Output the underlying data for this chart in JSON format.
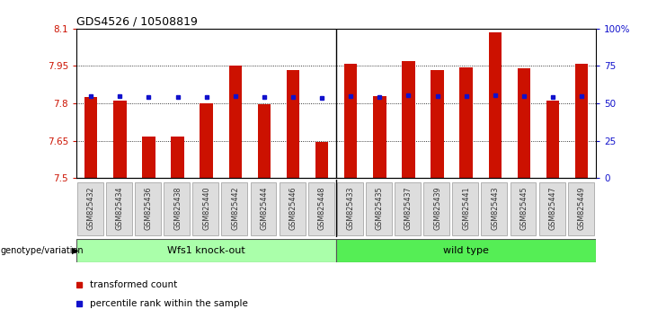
{
  "title": "GDS4526 / 10508819",
  "categories": [
    "GSM825432",
    "GSM825434",
    "GSM825436",
    "GSM825438",
    "GSM825440",
    "GSM825442",
    "GSM825444",
    "GSM825446",
    "GSM825448",
    "GSM825433",
    "GSM825435",
    "GSM825437",
    "GSM825439",
    "GSM825441",
    "GSM825443",
    "GSM825445",
    "GSM825447",
    "GSM825449"
  ],
  "red_values": [
    7.825,
    7.81,
    7.665,
    7.668,
    7.8,
    7.95,
    7.795,
    7.935,
    7.645,
    7.96,
    7.828,
    7.968,
    7.935,
    7.945,
    8.085,
    7.94,
    7.812,
    7.958
  ],
  "blue_values": [
    7.83,
    7.828,
    7.825,
    7.825,
    7.827,
    7.828,
    7.826,
    7.826,
    7.822,
    7.83,
    7.827,
    7.832,
    7.828,
    7.83,
    7.831,
    7.828,
    7.826,
    7.83
  ],
  "ymin": 7.5,
  "ymax": 8.1,
  "yticks_left": [
    7.5,
    7.65,
    7.8,
    7.95,
    8.1
  ],
  "yticks_right_vals": [
    7.5,
    7.65,
    7.8,
    7.95,
    8.1
  ],
  "yticks_right_labels": [
    "0",
    "25",
    "50",
    "75",
    "100%"
  ],
  "bar_color": "#CC1100",
  "dot_color": "#1111CC",
  "group1_label": "Wfs1 knock-out",
  "group2_label": "wild type",
  "group1_count": 9,
  "group2_count": 9,
  "group_color1": "#AAFFAA",
  "group_color2": "#55EE55",
  "xlabel_left": "genotype/variation",
  "legend_transformed": "transformed count",
  "legend_percentile": "percentile rank within the sample",
  "bar_width": 0.45
}
